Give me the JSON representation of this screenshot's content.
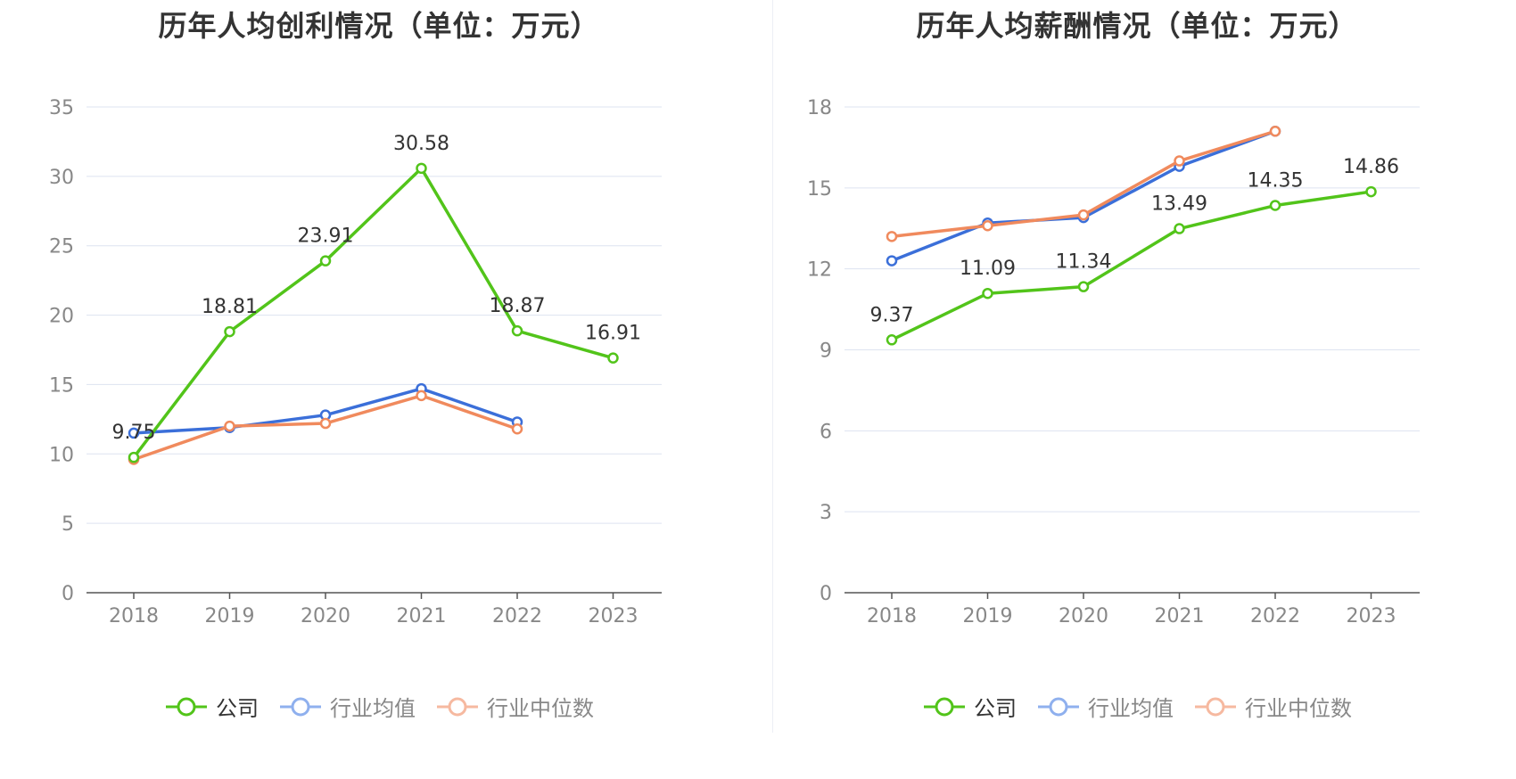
{
  "charts": [
    {
      "title": "历年人均创利情况（单位：万元）",
      "legend": [
        {
          "label": "公司",
          "color": "#52c41a",
          "active": true
        },
        {
          "label": "行业均值",
          "color": "#3b6fd9",
          "active": false
        },
        {
          "label": "行业中位数",
          "color": "#f08a5d",
          "active": false
        }
      ]
    },
    {
      "title": "历年人均薪酬情况（单位：万元）",
      "legend": [
        {
          "label": "公司",
          "color": "#52c41a",
          "active": true
        },
        {
          "label": "行业均值",
          "color": "#3b6fd9",
          "active": false
        },
        {
          "label": "行业中位数",
          "color": "#f08a5d",
          "active": false
        }
      ]
    }
  ],
  "chart_data": [
    {
      "type": "line",
      "title": "历年人均创利情况（单位：万元）",
      "categories": [
        "2018",
        "2019",
        "2020",
        "2021",
        "2022",
        "2023"
      ],
      "ylim": [
        0,
        35
      ],
      "yticks": [
        0,
        5,
        10,
        15,
        20,
        25,
        30,
        35
      ],
      "grid": true,
      "legend_position": "bottom",
      "series": [
        {
          "name": "公司",
          "color": "#52c41a",
          "values": [
            9.75,
            18.81,
            23.91,
            30.58,
            18.87,
            16.91
          ],
          "labels": [
            "9.75",
            "18.81",
            "23.91",
            "30.58",
            "18.87",
            "16.91"
          ]
        },
        {
          "name": "行业均值",
          "color": "#3b6fd9",
          "values": [
            11.5,
            11.9,
            12.8,
            14.7,
            12.3,
            null
          ]
        },
        {
          "name": "行业中位数",
          "color": "#f08a5d",
          "values": [
            9.6,
            12.0,
            12.2,
            14.2,
            11.8,
            null
          ]
        }
      ]
    },
    {
      "type": "line",
      "title": "历年人均薪酬情况（单位：万元）",
      "categories": [
        "2018",
        "2019",
        "2020",
        "2021",
        "2022",
        "2023"
      ],
      "ylim": [
        0,
        18
      ],
      "yticks": [
        0,
        3,
        6,
        9,
        12,
        15,
        18
      ],
      "grid": true,
      "legend_position": "bottom",
      "series": [
        {
          "name": "公司",
          "color": "#52c41a",
          "values": [
            9.37,
            11.09,
            11.34,
            13.49,
            14.35,
            14.86
          ],
          "labels": [
            "9.37",
            "11.09",
            "11.34",
            "13.49",
            "14.35",
            "14.86"
          ]
        },
        {
          "name": "行业均值",
          "color": "#3b6fd9",
          "values": [
            12.3,
            13.7,
            13.9,
            15.8,
            17.1,
            null
          ]
        },
        {
          "name": "行业中位数",
          "color": "#f08a5d",
          "values": [
            13.2,
            13.6,
            14.0,
            16.0,
            17.1,
            null
          ]
        }
      ]
    }
  ]
}
